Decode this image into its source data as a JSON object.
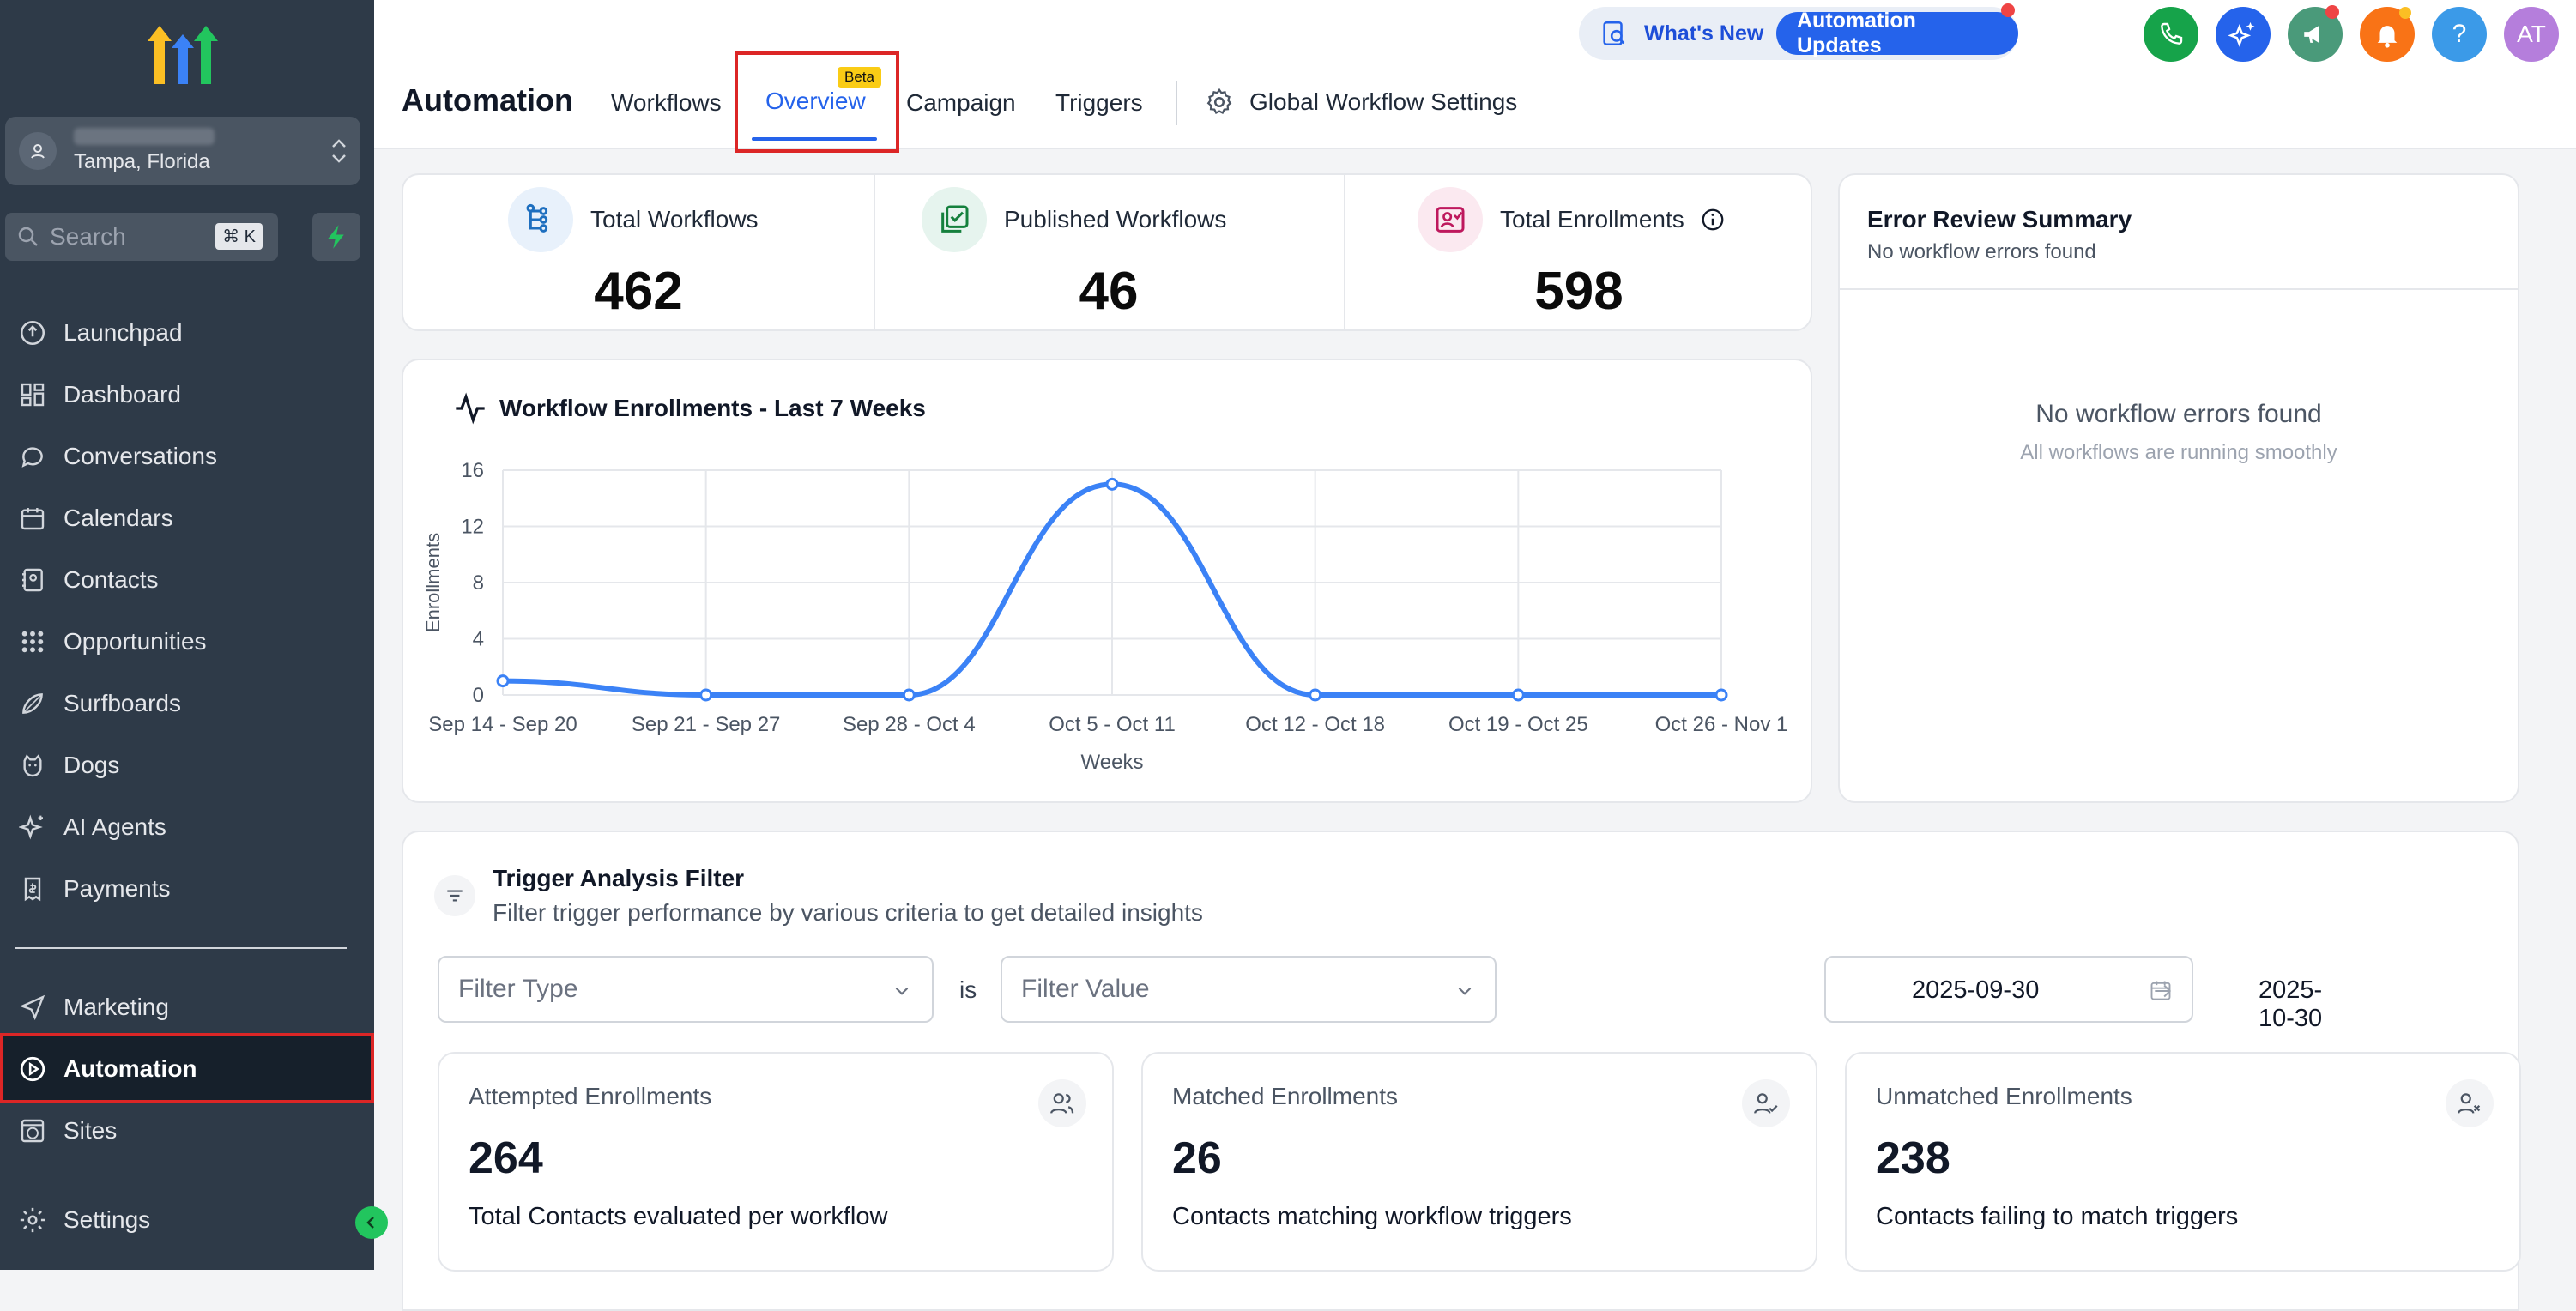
{
  "sidebar": {
    "location_subtitle": "Tampa, Florida",
    "search_placeholder": "Search",
    "search_shortcut": "⌘ K",
    "nav": [
      {
        "label": "Launchpad",
        "icon": "rocket-icon"
      },
      {
        "label": "Dashboard",
        "icon": "grid-icon"
      },
      {
        "label": "Conversations",
        "icon": "chat-icon"
      },
      {
        "label": "Calendars",
        "icon": "calendar-icon"
      },
      {
        "label": "Contacts",
        "icon": "contacts-icon"
      },
      {
        "label": "Opportunities",
        "icon": "opportunities-icon"
      },
      {
        "label": "Surfboards",
        "icon": "surfboard-icon"
      },
      {
        "label": "Dogs",
        "icon": "dog-icon"
      },
      {
        "label": "AI Agents",
        "icon": "sparkle-icon"
      },
      {
        "label": "Payments",
        "icon": "payments-icon"
      },
      {
        "label": "Marketing",
        "icon": "send-icon"
      },
      {
        "label": "Automation",
        "icon": "automation-icon"
      },
      {
        "label": "Sites",
        "icon": "globe-icon"
      },
      {
        "label": "Settings",
        "icon": "gear-icon"
      }
    ]
  },
  "header": {
    "title": "Automation",
    "tabs": [
      "Workflows",
      "Overview",
      "Campaign",
      "Triggers"
    ],
    "active_tab": "Overview",
    "beta_badge": "Beta",
    "global_settings": "Global Workflow Settings",
    "whats_new": "What's New",
    "automation_updates": "Automation Updates",
    "avatar_initials": "AT",
    "help": "?",
    "colors": {
      "accent": "#2563eb",
      "phone": "#16a34a",
      "sparkle": "#2563eb",
      "megaphone": "#4a9a7a",
      "bell": "#f97316",
      "help": "#3b9ae8",
      "avatar": "#b57edc"
    }
  },
  "stats": [
    {
      "label": "Total Workflows",
      "value": "462",
      "icon": "workflow-tree-icon"
    },
    {
      "label": "Published Workflows",
      "value": "46",
      "icon": "published-icon"
    },
    {
      "label": "Total Enrollments",
      "value": "598",
      "icon": "enrollment-icon"
    }
  ],
  "chart": {
    "title": "Workflow Enrollments - Last 7 Weeks"
  },
  "chart_data": {
    "type": "line",
    "categories": [
      "Sep 14 - Sep 20",
      "Sep 21 - Sep 27",
      "Sep 28 - Oct 4",
      "Oct 5 - Oct 11",
      "Oct 12 - Oct 18",
      "Oct 19 - Oct 25",
      "Oct 26 - Nov 1"
    ],
    "values": [
      1,
      0,
      0,
      15,
      0,
      0,
      0
    ],
    "xlabel": "Weeks",
    "ylabel": "Enrollments",
    "yticks": [
      0,
      4,
      8,
      12,
      16
    ],
    "ylim": [
      0,
      16
    ],
    "grid": true,
    "color": "#3b82f6"
  },
  "errors": {
    "title": "Error Review Summary",
    "subtitle": "No workflow errors found",
    "empty_title": "No workflow errors found",
    "empty_sub": "All workflows are running smoothly"
  },
  "trigger": {
    "title": "Trigger Analysis Filter",
    "subtitle": "Filter trigger performance by various criteria to get detailed insights",
    "filter_type_placeholder": "Filter Type",
    "is_label": "is",
    "filter_value_placeholder": "Filter Value",
    "date_start": "2025-09-30",
    "date_end": "2025-10-30",
    "cards": [
      {
        "label": "Attempted Enrollments",
        "value": "264",
        "desc": "Total Contacts evaluated per workflow",
        "icon": "users-icon"
      },
      {
        "label": "Matched Enrollments",
        "value": "26",
        "desc": "Contacts matching workflow triggers",
        "icon": "user-check-icon"
      },
      {
        "label": "Unmatched Enrollments",
        "value": "238",
        "desc": "Contacts failing to match triggers",
        "icon": "user-x-icon"
      }
    ]
  }
}
